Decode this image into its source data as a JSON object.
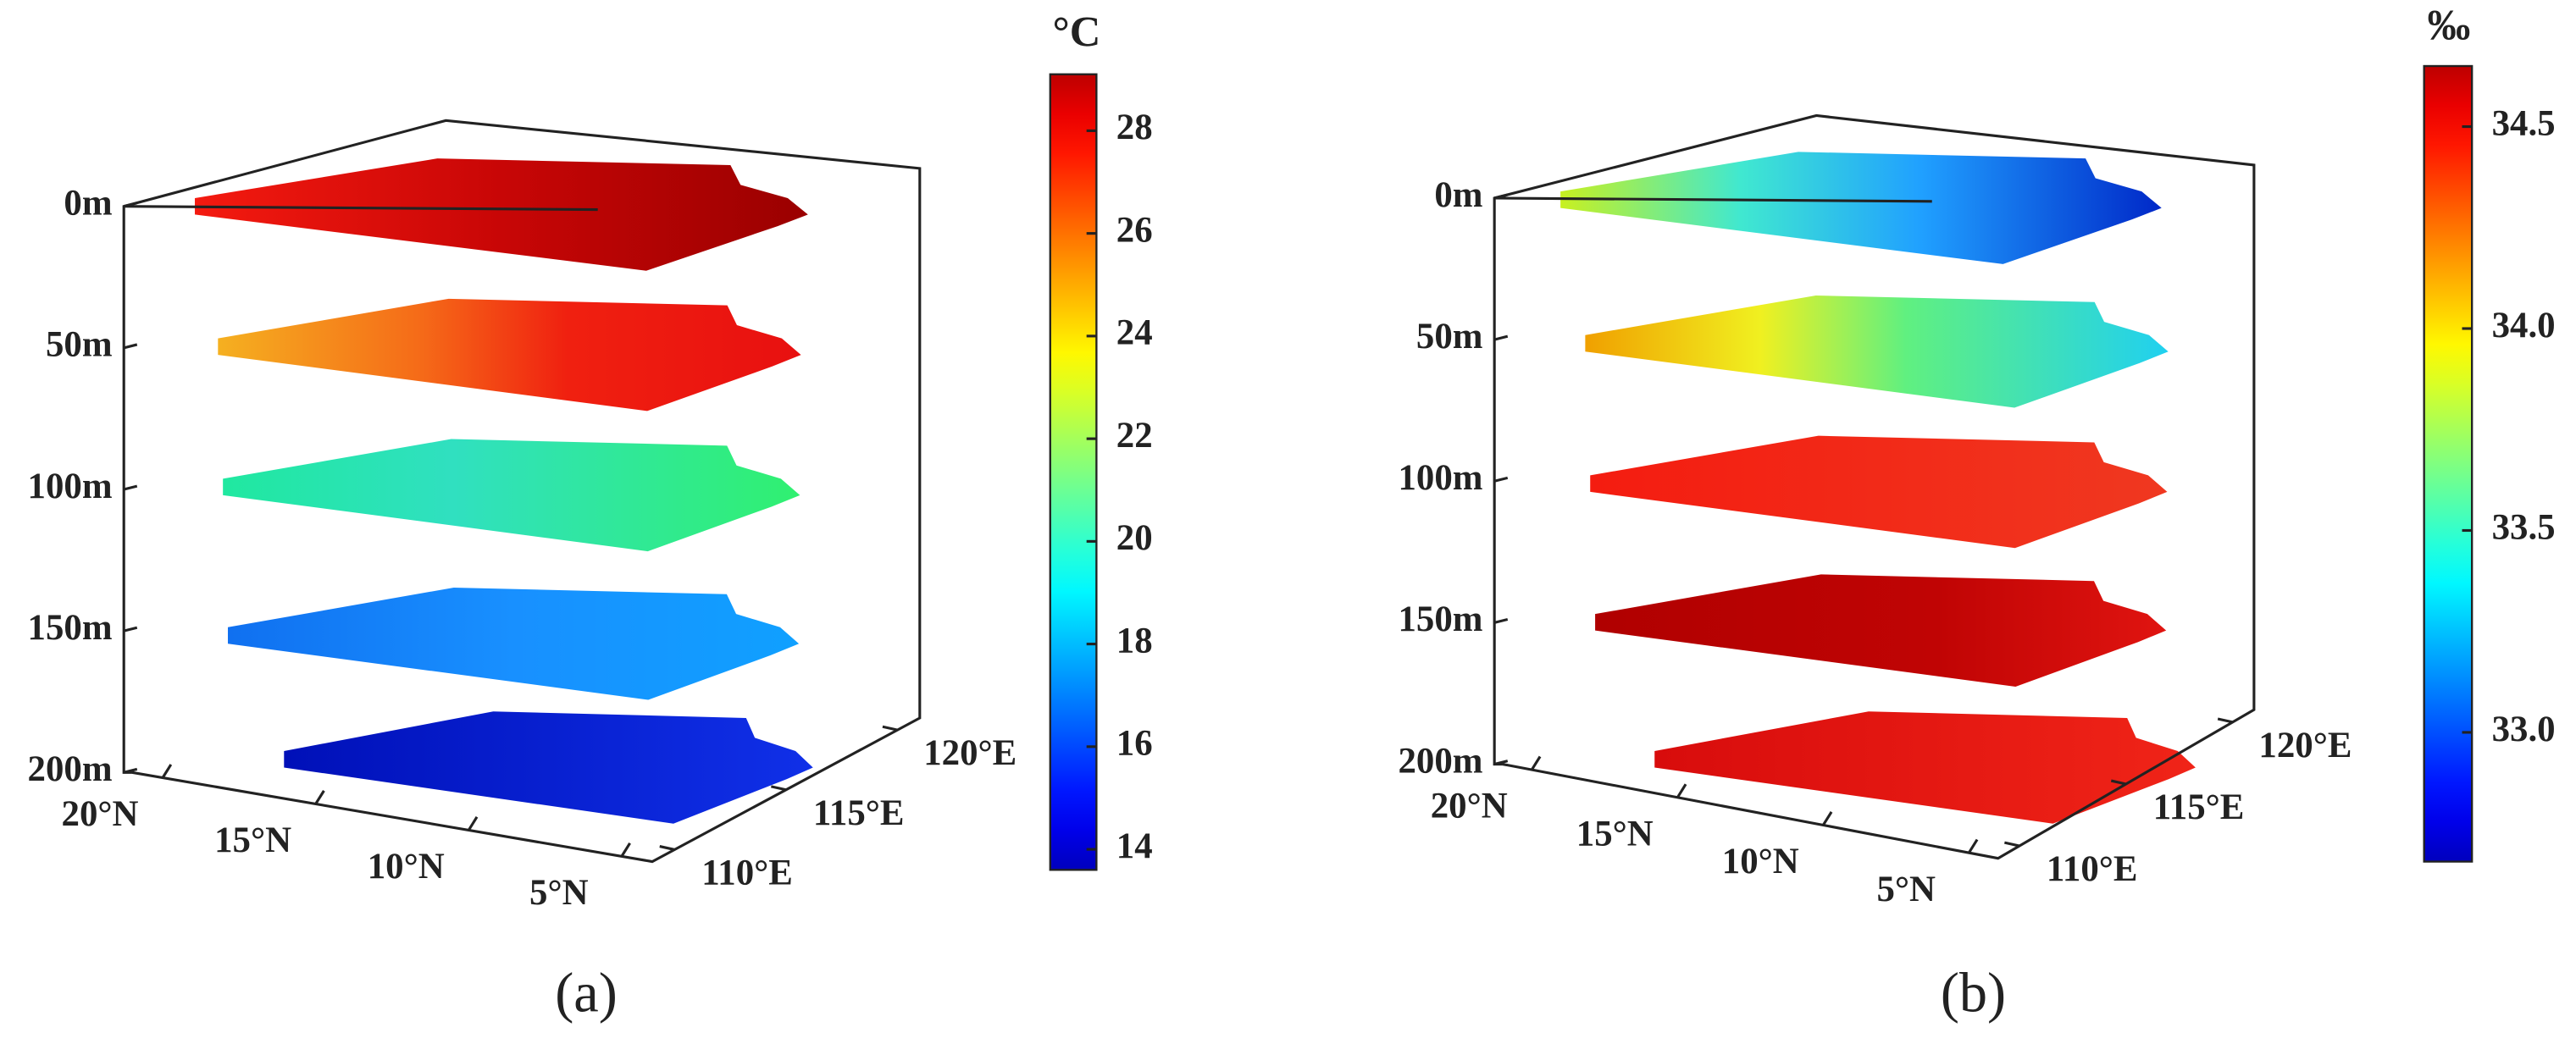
{
  "chart_data": [
    {
      "type": "slices3d",
      "panel_label": "(a)",
      "colorbar_label": "°C",
      "colormap": "jet",
      "zlim": [
        0,
        200
      ],
      "zticks": [
        {
          "value": 0,
          "label": "0m"
        },
        {
          "value": 50,
          "label": "50m"
        },
        {
          "value": 100,
          "label": "100m"
        },
        {
          "value": 150,
          "label": "150m"
        },
        {
          "value": 200,
          "label": "200m"
        }
      ],
      "xlim": [
        21,
        4
      ],
      "xticks": [
        {
          "value": 20,
          "label": "20°N"
        },
        {
          "value": 15,
          "label": "15°N"
        },
        {
          "value": 10,
          "label": "10°N"
        },
        {
          "value": 5,
          "label": "5°N"
        }
      ],
      "ylim": [
        109,
        121
      ],
      "yticks": [
        {
          "value": 110,
          "label": "110°E"
        },
        {
          "value": 115,
          "label": "115°E"
        },
        {
          "value": 120,
          "label": "120°E"
        }
      ],
      "clim": [
        13.6,
        29.1
      ],
      "cticks": [
        14,
        16,
        18,
        20,
        22,
        24,
        26,
        28
      ]
    },
    {
      "type": "slices3d",
      "panel_label": "(b)",
      "colorbar_label": "‰",
      "colormap": "jet",
      "zlim": [
        0,
        200
      ],
      "zticks": [
        {
          "value": 0,
          "label": "0m"
        },
        {
          "value": 50,
          "label": "50m"
        },
        {
          "value": 100,
          "label": "100m"
        },
        {
          "value": 150,
          "label": "150m"
        },
        {
          "value": 200,
          "label": "200m"
        }
      ],
      "xlim": [
        21,
        4
      ],
      "xticks": [
        {
          "value": 20,
          "label": "20°N"
        },
        {
          "value": 15,
          "label": "15°N"
        },
        {
          "value": 10,
          "label": "10°N"
        },
        {
          "value": 5,
          "label": "5°N"
        }
      ],
      "ylim": [
        109,
        121
      ],
      "yticks": [
        {
          "value": 110,
          "label": "110°E"
        },
        {
          "value": 115,
          "label": "115°E"
        },
        {
          "value": 120,
          "label": "120°E"
        }
      ],
      "clim": [
        32.68,
        34.65
      ],
      "cticks": [
        {
          "value": 33,
          "label": "33.0"
        },
        {
          "value": 33.5,
          "label": "33.5"
        },
        {
          "value": 34,
          "label": "34.0"
        },
        {
          "value": 34.5,
          "label": "34.5"
        }
      ]
    }
  ]
}
